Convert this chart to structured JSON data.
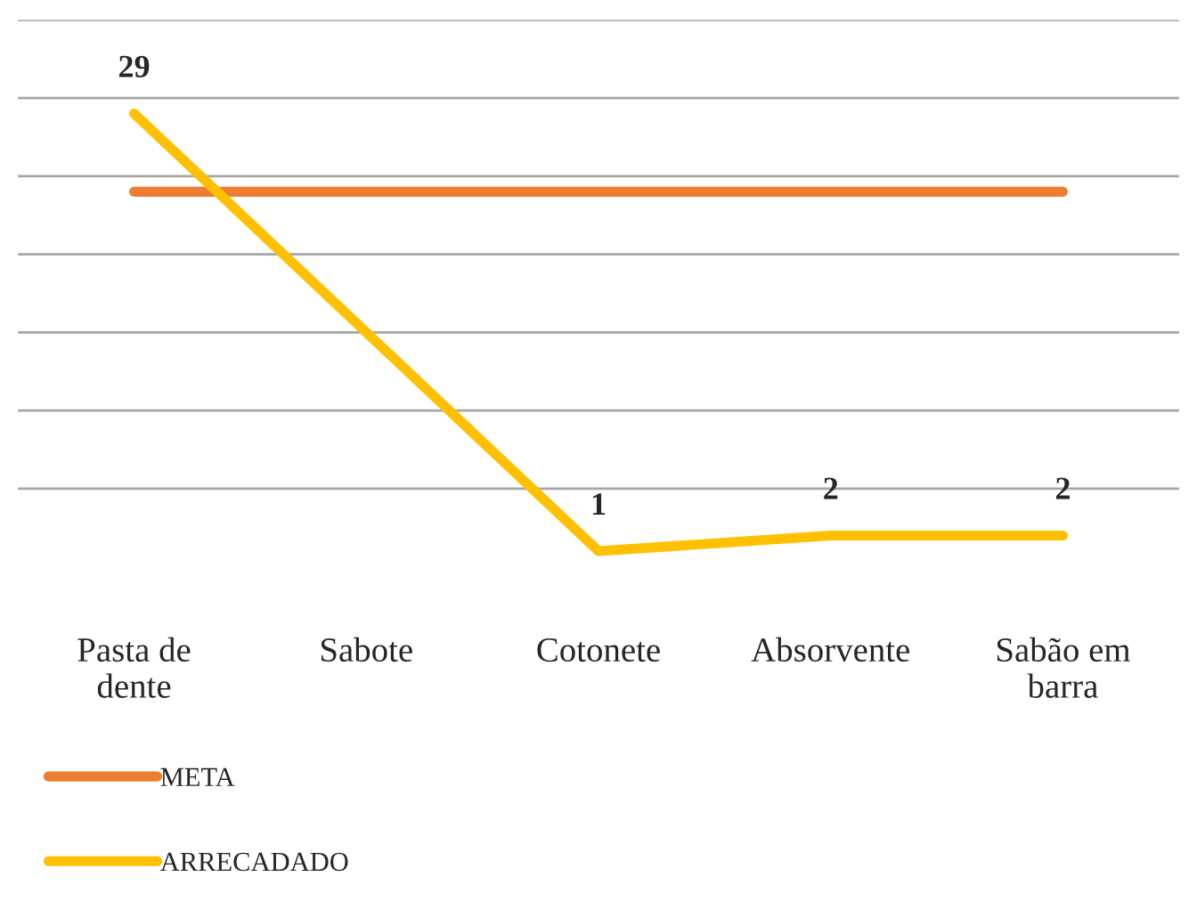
{
  "chart_data": {
    "type": "line",
    "categories": [
      "Pasta de\ndente",
      "Sabote",
      "Cotonete",
      "Absorvente",
      "Sabão em\nbarra"
    ],
    "series": [
      {
        "name": "META",
        "color": "#ed7d31",
        "values": [
          24,
          24,
          24,
          24,
          24
        ]
      },
      {
        "name": "ARRECADADO",
        "color": "#ffc000",
        "values": [
          29,
          15,
          1,
          2,
          2
        ],
        "value_labels": [
          "29",
          null,
          "1",
          "2",
          "2"
        ]
      }
    ],
    "yticks": [
      {
        "value": 5,
        "label": null
      },
      {
        "value": 10,
        "label": null
      },
      {
        "value": 15,
        "label": null
      },
      {
        "value": 20,
        "label": null
      },
      {
        "value": 25,
        "label": null
      },
      {
        "value": 30,
        "label": null
      },
      {
        "value": 35,
        "label": null
      }
    ],
    "tick_labels": "x",
    "grid": "y",
    "legend": "bottom",
    "marker": "none",
    "line_style": "solid"
  }
}
